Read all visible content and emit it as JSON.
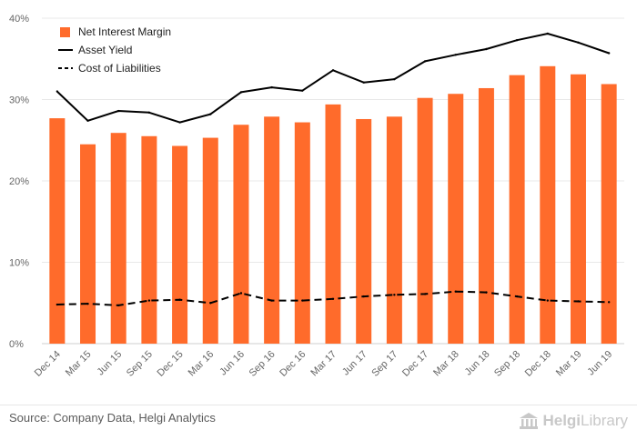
{
  "chart_data": {
    "type": "bar",
    "categories": [
      "Dec 14",
      "Mar 15",
      "Jun 15",
      "Sep 15",
      "Dec 15",
      "Mar 16",
      "Jun 16",
      "Sep 16",
      "Dec 16",
      "Mar 17",
      "Jun 17",
      "Sep 17",
      "Dec 17",
      "Mar 18",
      "Jun 18",
      "Sep 18",
      "Dec 18",
      "Mar 19",
      "Jun 19"
    ],
    "series": [
      {
        "name": "Net Interest Margin",
        "kind": "bar",
        "color": "#ff6b2b",
        "values": [
          27.7,
          24.5,
          25.9,
          25.5,
          24.3,
          25.3,
          26.9,
          27.9,
          27.2,
          29.4,
          27.6,
          27.9,
          30.2,
          30.7,
          31.4,
          33.0,
          34.1,
          33.1,
          31.9
        ]
      },
      {
        "name": "Asset Yield",
        "kind": "line",
        "style": "solid",
        "color": "#000000",
        "values": [
          31.0,
          27.4,
          28.6,
          28.4,
          27.2,
          28.2,
          30.9,
          31.5,
          31.1,
          33.6,
          32.1,
          32.5,
          34.7,
          35.5,
          36.2,
          37.3,
          38.1,
          37.0,
          35.7
        ]
      },
      {
        "name": "Cost of Liabilities",
        "kind": "line",
        "style": "dashed",
        "color": "#000000",
        "values": [
          4.8,
          4.9,
          4.7,
          5.3,
          5.4,
          5.0,
          6.2,
          5.3,
          5.3,
          5.5,
          5.8,
          6.0,
          6.1,
          6.4,
          6.3,
          5.8,
          5.3,
          5.2,
          5.1
        ]
      }
    ],
    "ylim": [
      0,
      40
    ],
    "yticks": [
      0,
      10,
      20,
      30,
      40
    ],
    "ytick_labels": [
      "0%",
      "10%",
      "20%",
      "30%",
      "40%"
    ],
    "grid": true,
    "legend_position": "top-left",
    "title": "",
    "xlabel": "",
    "ylabel": ""
  },
  "footer": {
    "source": "Source: Company Data, Helgi Analytics",
    "brand_bold": "Helgi",
    "brand_light": "Library"
  }
}
